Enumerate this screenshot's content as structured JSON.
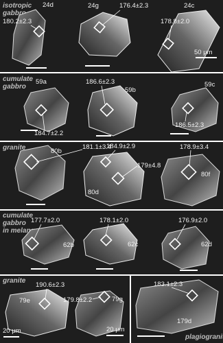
{
  "panels": [
    {
      "label_lines": [
        "isotropic",
        "gabbro"
      ],
      "grains": [
        {
          "id": "24d",
          "ages": [
            "180.2±2.3"
          ]
        },
        {
          "id": "24g",
          "ages": [
            "176.4±2.3"
          ]
        },
        {
          "id": "24c",
          "ages": [
            "178.8±2.0"
          ]
        }
      ],
      "scale_bars": [
        "50 μm"
      ]
    },
    {
      "label_lines": [
        "cumulate",
        "gabbro"
      ],
      "grains": [
        {
          "id": "59a",
          "ages": [
            "184.7±2.2"
          ]
        },
        {
          "id": "59b",
          "ages": [
            "186.6±2.3"
          ]
        },
        {
          "id": "59c",
          "ages": [
            "186.5±2.3"
          ]
        }
      ]
    },
    {
      "label_lines": [
        "granite"
      ],
      "grains": [
        {
          "id": "80b",
          "ages": [
            "181.1±3.4"
          ]
        },
        {
          "id": "80d",
          "ages": [
            "184.9±2.9",
            "179±4.8"
          ]
        },
        {
          "id": "80f",
          "ages": [
            "178.9±3.4"
          ]
        }
      ]
    },
    {
      "label_lines": [
        "cumulate",
        "gabbro",
        "in melange"
      ],
      "grains": [
        {
          "id": "62b",
          "ages": [
            "177.7±2.0"
          ]
        },
        {
          "id": "62c",
          "ages": [
            "178.1±2.0"
          ]
        },
        {
          "id": "62d",
          "ages": [
            "176.9±2.0"
          ]
        }
      ]
    },
    {
      "label_lines": [
        "granite"
      ],
      "grains": [
        {
          "id": "79e",
          "ages": [
            "190.6±2.3"
          ]
        },
        {
          "id": "79g",
          "ages": [
            "179.8±2.2"
          ]
        }
      ],
      "scale_bars": [
        "20 μm",
        "20 μm"
      ]
    },
    {
      "label_lines": [
        "plagiogranite"
      ],
      "grains": [
        {
          "id": "179d",
          "ages": [
            "183.1±2.3"
          ]
        }
      ]
    }
  ]
}
